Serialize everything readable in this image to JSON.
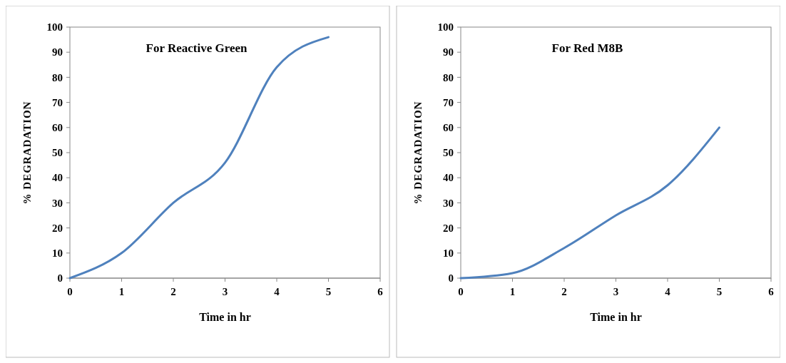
{
  "chart_data": [
    {
      "type": "line",
      "title": "For Reactive Green",
      "xlabel": "Time in hr",
      "ylabel": "% DEGRADATION",
      "x": [
        0,
        1,
        2,
        3,
        4,
        5
      ],
      "series": [
        {
          "color": "#4f81bd",
          "values": [
            0,
            10,
            30,
            46,
            84,
            96
          ]
        }
      ],
      "xlim": [
        0,
        6
      ],
      "xticks": [
        0,
        1,
        2,
        3,
        4,
        5,
        6
      ],
      "ylim": [
        0,
        100
      ],
      "yticks": [
        0,
        10,
        20,
        30,
        40,
        50,
        60,
        70,
        80,
        90,
        100
      ],
      "marker": "none",
      "line_style": "solid"
    },
    {
      "type": "line",
      "title": "For Red M8B",
      "xlabel": "Time in hr",
      "ylabel": "% DEGRADATION",
      "x": [
        0,
        1,
        2,
        3,
        4,
        5
      ],
      "series": [
        {
          "color": "#4f81bd",
          "values": [
            0,
            2,
            12,
            25,
            37,
            60
          ]
        }
      ],
      "xlim": [
        0,
        6
      ],
      "xticks": [
        0,
        1,
        2,
        3,
        4,
        5,
        6
      ],
      "ylim": [
        0,
        100
      ],
      "yticks": [
        0,
        10,
        20,
        30,
        40,
        50,
        60,
        70,
        80,
        90,
        100
      ],
      "marker": "none",
      "line_style": "solid"
    }
  ]
}
